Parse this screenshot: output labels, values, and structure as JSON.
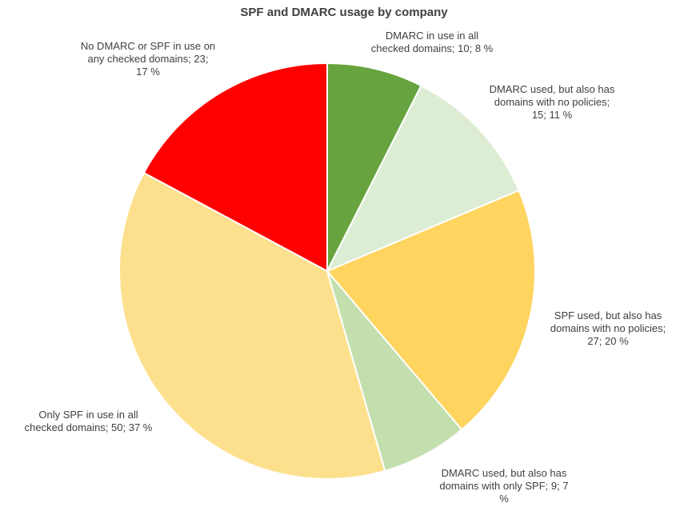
{
  "chart_data": {
    "type": "pie",
    "title": "SPF and DMARC usage by company",
    "legend": "none",
    "slices": [
      {
        "name": "DMARC in use in all checked domains",
        "value": 10,
        "percent": 8,
        "label": "DMARC in use in all\nchecked domains; 10; 8 %",
        "color": "#67A43F"
      },
      {
        "name": "DMARC used, but also has domains with no policies",
        "value": 15,
        "percent": 11,
        "label": "DMARC used, but also has\ndomains with no policies;\n15; 11 %",
        "color": "#DDEDD4"
      },
      {
        "name": "SPF used, but also has domains with no policies",
        "value": 27,
        "percent": 20,
        "label": "SPF used, but also has\ndomains with no policies;\n27; 20 %",
        "color": "#FFD45F"
      },
      {
        "name": "DMARC used, but also has domains with only SPF",
        "value": 9,
        "percent": 7,
        "label": "DMARC used, but also has\ndomains with only SPF; 9; 7\n%",
        "color": "#C2DFAD"
      },
      {
        "name": "Only SPF in use in all checked domains",
        "value": 50,
        "percent": 37,
        "label": "Only SPF in use in all\nchecked domains; 50; 37 %",
        "color": "#FDE08E"
      },
      {
        "name": "No DMARC or SPF in use on any checked domains",
        "value": 23,
        "percent": 17,
        "label": "No DMARC or SPF in use on\nany checked domains; 23;\n17 %",
        "color": "#FF0000"
      }
    ]
  }
}
